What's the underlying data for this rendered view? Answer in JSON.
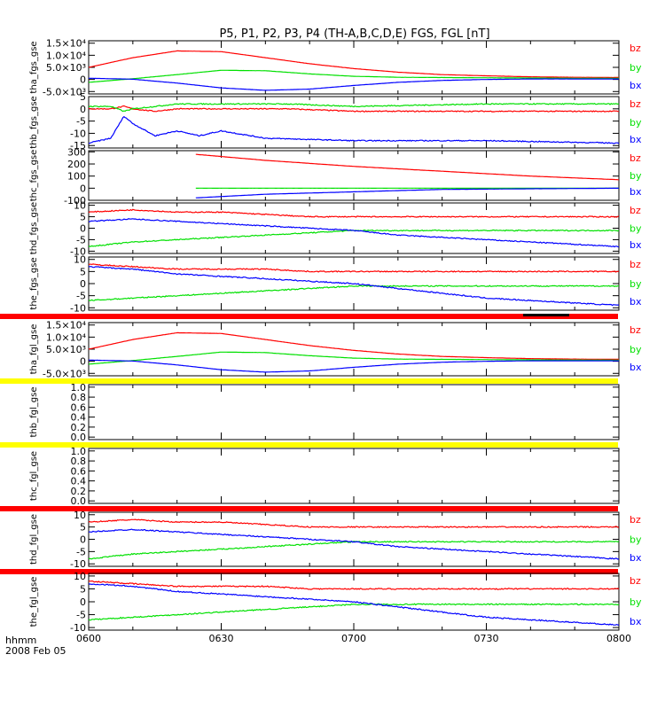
{
  "title": "P5, P1, P2, P3, P4 (TH-A,B,C,D,E) FGS, FGL [nT]",
  "footer": {
    "label": "hhmm",
    "date": "2008 Feb 05"
  },
  "colors": {
    "bx": "#0000ff",
    "by": "#00e000",
    "bz": "#ff0000",
    "bar_red": "#ff0000",
    "bar_yellow": "#ffff00",
    "frame": "#000000"
  },
  "chart_data": {
    "type": "line",
    "x_ticks": [
      "0600",
      "0630",
      "0700",
      "0730",
      "0800"
    ],
    "xlim": [
      "06:00",
      "08:00"
    ],
    "panels": [
      {
        "id": "tha_fgs_gse",
        "ylabel": "tha_fgs_gse",
        "ylim": [
          -6000,
          16000
        ],
        "yticks": [
          -5000,
          0,
          5000,
          10000,
          15000
        ],
        "ytick_labels": [
          "-5.0×10³",
          "0",
          "5.0×10³",
          "1.0×10⁴",
          "1.5×10⁴"
        ],
        "bar_above": null,
        "series": [
          {
            "name": "bz",
            "x": [
              0,
              10,
              20,
              30,
              40,
              50,
              60,
              70,
              80,
              90,
              100,
              110,
              120
            ],
            "y": [
              5000,
              9000,
              11800,
              11500,
              9000,
              6500,
              4500,
              3000,
              2000,
              1500,
              1100,
              900,
              800
            ]
          },
          {
            "name": "by",
            "x": [
              0,
              10,
              20,
              30,
              40,
              50,
              60,
              70,
              80,
              90,
              100,
              110,
              120
            ],
            "y": [
              -1200,
              300,
              2000,
              3800,
              3600,
              2300,
              1300,
              900,
              800,
              700,
              600,
              500,
              500
            ]
          },
          {
            "name": "bx",
            "x": [
              0,
              10,
              20,
              30,
              40,
              50,
              60,
              70,
              80,
              90,
              100,
              110,
              120
            ],
            "y": [
              500,
              100,
              -1500,
              -3500,
              -4500,
              -4000,
              -2500,
              -1200,
              -400,
              0,
              200,
              200,
              200
            ]
          }
        ]
      },
      {
        "id": "thb_fgs_gse",
        "ylabel": "thb_fgs_gse",
        "ylim": [
          -16,
          5
        ],
        "yticks": [
          -15,
          -10,
          -5,
          0,
          5
        ],
        "ytick_labels": [
          "-15",
          "-10",
          "-5",
          "0",
          "5"
        ],
        "bar_above": null,
        "series": [
          {
            "name": "bz",
            "x": [
              0,
              5,
              8,
              10,
              15,
              20,
              30,
              45,
              60,
              90,
              120
            ],
            "y": [
              0,
              0,
              1,
              0,
              -1,
              0,
              0,
              0,
              -1,
              -1,
              -1
            ]
          },
          {
            "name": "by",
            "x": [
              0,
              5,
              8,
              10,
              15,
              20,
              30,
              45,
              60,
              90,
              120
            ],
            "y": [
              1,
              1,
              -1,
              0,
              1,
              2,
              2,
              2,
              1,
              2,
              2
            ]
          },
          {
            "name": "bx",
            "x": [
              0,
              5,
              8,
              10,
              15,
              20,
              25,
              30,
              40,
              60,
              90,
              120
            ],
            "y": [
              -14,
              -12,
              -3,
              -6,
              -11,
              -9,
              -11,
              -9,
              -12,
              -13,
              -13,
              -14
            ]
          }
        ]
      },
      {
        "id": "thc_fgs_gse",
        "ylabel": "thc_fgs_gse",
        "ylim": [
          -100,
          310
        ],
        "yticks": [
          -100,
          0,
          100,
          200,
          300
        ],
        "ytick_labels": [
          "-100",
          "0",
          "100",
          "200",
          "300"
        ],
        "bar_above": null,
        "series": [
          {
            "name": "bz",
            "x": [
              24,
              24.2,
              40,
              60,
              80,
              100,
              120
            ],
            "y": [
              null,
              280,
              230,
              180,
              140,
              100,
              70
            ]
          },
          {
            "name": "by",
            "x": [
              24,
              24.2,
              60,
              120
            ],
            "y": [
              null,
              0,
              0,
              0
            ]
          },
          {
            "name": "bx",
            "x": [
              24,
              24.2,
              40,
              60,
              80,
              120
            ],
            "y": [
              null,
              -80,
              -50,
              -30,
              -10,
              0
            ]
          }
        ]
      },
      {
        "id": "thd_fgs_gse",
        "ylabel": "thd_fgs_gse",
        "ylim": [
          -11,
          11
        ],
        "yticks": [
          -10,
          -5,
          0,
          5,
          10
        ],
        "ytick_labels": [
          "-10",
          "-5",
          "0",
          "5",
          "10"
        ],
        "bar_above": null,
        "series": [
          {
            "name": "bz",
            "x": [
              0,
              10,
              20,
              30,
              40,
              50,
              60,
              70,
              80,
              90,
              100,
              110,
              120
            ],
            "y": [
              7,
              8,
              7,
              7,
              6,
              5,
              5,
              5,
              5,
              5,
              5,
              5,
              5
            ]
          },
          {
            "name": "by",
            "x": [
              0,
              10,
              20,
              30,
              40,
              50,
              60,
              70,
              80,
              90,
              100,
              110,
              120
            ],
            "y": [
              -8,
              -6,
              -5,
              -4,
              -3,
              -2,
              -1,
              -1,
              -1,
              -1,
              -1,
              -1,
              -1
            ]
          },
          {
            "name": "bx",
            "x": [
              0,
              10,
              20,
              30,
              40,
              50,
              60,
              70,
              80,
              90,
              100,
              110,
              120
            ],
            "y": [
              3,
              4,
              3,
              2,
              1,
              0,
              -1,
              -3,
              -4,
              -5,
              -6,
              -7,
              -8
            ]
          }
        ]
      },
      {
        "id": "the_fgs_gse",
        "ylabel": "the_fgs_gse",
        "ylim": [
          -11,
          11
        ],
        "yticks": [
          -10,
          -5,
          0,
          5,
          10
        ],
        "ytick_labels": [
          "-10",
          "-5",
          "0",
          "5",
          "10"
        ],
        "bar_above": null,
        "series": [
          {
            "name": "bz",
            "x": [
              0,
              10,
              20,
              30,
              40,
              50,
              60,
              70,
              80,
              90,
              100,
              110,
              120
            ],
            "y": [
              8,
              7,
              6,
              6,
              6,
              5,
              5,
              5,
              5,
              5,
              5,
              5,
              5
            ]
          },
          {
            "name": "by",
            "x": [
              0,
              10,
              20,
              30,
              40,
              50,
              60,
              70,
              80,
              90,
              100,
              110,
              120
            ],
            "y": [
              -7,
              -6,
              -5,
              -4,
              -3,
              -2,
              -1,
              -1,
              -1,
              -1,
              -1,
              -1,
              -1
            ]
          },
          {
            "name": "bx",
            "x": [
              0,
              10,
              20,
              30,
              40,
              50,
              60,
              70,
              80,
              90,
              100,
              110,
              120
            ],
            "y": [
              7,
              6,
              4,
              3,
              2,
              1,
              0,
              -2,
              -4,
              -6,
              -7,
              -8,
              -9
            ]
          }
        ]
      },
      {
        "id": "tha_fgl_gse",
        "ylabel": "tha_fgl_gse",
        "ylim": [
          -6000,
          16000
        ],
        "yticks": [
          -5000,
          0,
          5000,
          10000,
          15000
        ],
        "ytick_labels": [
          "-5.0×10³",
          "0",
          "5.0×10³",
          "1.0×10⁴",
          "1.5×10⁴"
        ],
        "bar_above": "red",
        "series": [
          {
            "name": "bz",
            "x": [
              0,
              10,
              20,
              30,
              40,
              50,
              60,
              70,
              80,
              90,
              100,
              110,
              120
            ],
            "y": [
              5000,
              9000,
              11800,
              11500,
              9000,
              6500,
              4500,
              3000,
              2000,
              1500,
              1100,
              900,
              800
            ]
          },
          {
            "name": "by",
            "x": [
              0,
              10,
              20,
              30,
              40,
              50,
              60,
              70,
              80,
              90,
              100,
              110,
              120
            ],
            "y": [
              -1200,
              300,
              2000,
              3800,
              3600,
              2300,
              1300,
              900,
              800,
              700,
              600,
              500,
              500
            ]
          },
          {
            "name": "bx",
            "x": [
              0,
              10,
              20,
              30,
              40,
              50,
              60,
              70,
              80,
              90,
              100,
              110,
              120
            ],
            "y": [
              500,
              100,
              -1500,
              -3500,
              -4500,
              -4000,
              -2500,
              -1200,
              -400,
              0,
              200,
              200,
              200
            ]
          }
        ]
      },
      {
        "id": "thb_fgl_gse",
        "ylabel": "thb_fgl_gse",
        "ylim": [
          -0.05,
          1.05
        ],
        "yticks": [
          0,
          0.2,
          0.4,
          0.6,
          0.8,
          1.0
        ],
        "ytick_labels": [
          "0.0",
          "0.2",
          "0.4",
          "0.6",
          "0.8",
          "1.0"
        ],
        "bar_above": "yellow",
        "series": []
      },
      {
        "id": "thc_fgl_gse",
        "ylabel": "thc_fgl_gse",
        "ylim": [
          -0.05,
          1.05
        ],
        "yticks": [
          0,
          0.2,
          0.4,
          0.6,
          0.8,
          1.0
        ],
        "ytick_labels": [
          "0.0",
          "0.2",
          "0.4",
          "0.6",
          "0.8",
          "1.0"
        ],
        "bar_above": "yellow",
        "series": []
      },
      {
        "id": "thd_fgl_gse",
        "ylabel": "thd_fgl_gse",
        "ylim": [
          -11,
          11
        ],
        "yticks": [
          -10,
          -5,
          0,
          5,
          10
        ],
        "ytick_labels": [
          "-10",
          "-5",
          "0",
          "5",
          "10"
        ],
        "bar_above": "red",
        "series": [
          {
            "name": "bz",
            "x": [
              0,
              10,
              20,
              30,
              40,
              50,
              60,
              70,
              80,
              90,
              100,
              110,
              120
            ],
            "y": [
              7,
              8,
              7,
              7,
              6,
              5,
              5,
              5,
              5,
              5,
              5,
              5,
              5
            ]
          },
          {
            "name": "by",
            "x": [
              0,
              10,
              20,
              30,
              40,
              50,
              60,
              70,
              80,
              90,
              100,
              110,
              120
            ],
            "y": [
              -8,
              -6,
              -5,
              -4,
              -3,
              -2,
              -1,
              -1,
              -1,
              -1,
              -1,
              -1,
              -1
            ]
          },
          {
            "name": "bx",
            "x": [
              0,
              10,
              20,
              30,
              40,
              50,
              60,
              70,
              80,
              90,
              100,
              110,
              120
            ],
            "y": [
              3,
              4,
              3,
              2,
              1,
              0,
              -1,
              -3,
              -4,
              -5,
              -6,
              -7,
              -8
            ]
          }
        ]
      },
      {
        "id": "the_fgl_gse",
        "ylabel": "the_fgl_gse",
        "ylim": [
          -11,
          11
        ],
        "yticks": [
          -10,
          -5,
          0,
          5,
          10
        ],
        "ytick_labels": [
          "-10",
          "-5",
          "0",
          "5",
          "10"
        ],
        "bar_above": "red",
        "series": [
          {
            "name": "bz",
            "x": [
              0,
              10,
              20,
              30,
              40,
              50,
              60,
              70,
              80,
              90,
              100,
              110,
              120
            ],
            "y": [
              8,
              7,
              6,
              6,
              6,
              5,
              5,
              5,
              5,
              5,
              5,
              5,
              5
            ]
          },
          {
            "name": "by",
            "x": [
              0,
              10,
              20,
              30,
              40,
              50,
              60,
              70,
              80,
              90,
              100,
              110,
              120
            ],
            "y": [
              -7,
              -6,
              -5,
              -4,
              -3,
              -2,
              -1,
              -1,
              -1,
              -1,
              -1,
              -1,
              -1
            ]
          },
          {
            "name": "bx",
            "x": [
              0,
              10,
              20,
              30,
              40,
              50,
              60,
              70,
              80,
              90,
              100,
              110,
              120
            ],
            "y": [
              7,
              6,
              4,
              3,
              2,
              1,
              0,
              -2,
              -4,
              -6,
              -7,
              -8,
              -9
            ]
          }
        ]
      }
    ]
  }
}
